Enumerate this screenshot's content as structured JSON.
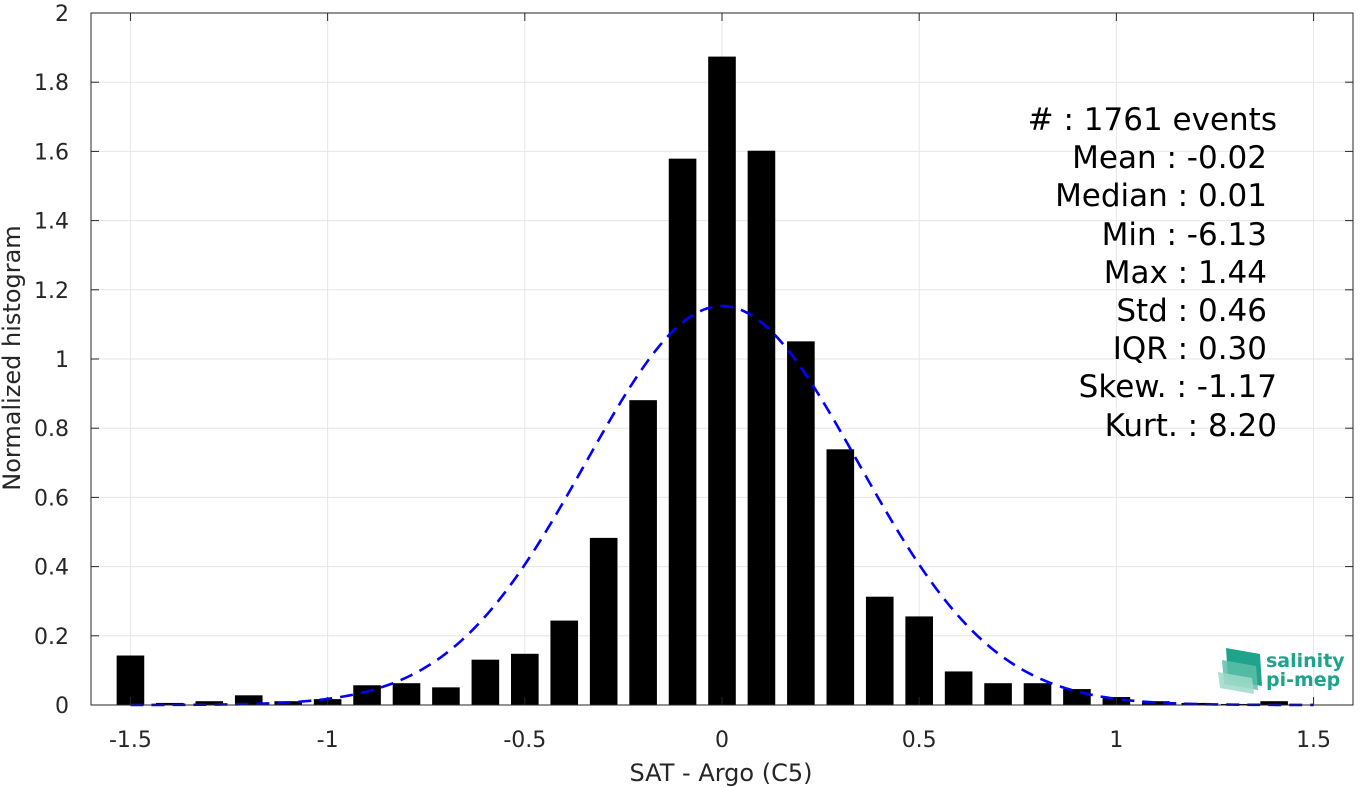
{
  "chart_data": {
    "type": "bar",
    "title": "",
    "xlabel": "SAT - Argo (C5)",
    "ylabel": "Normalized histogram",
    "xlim": [
      -1.6,
      1.6
    ],
    "ylim": [
      0,
      2
    ],
    "grid": true,
    "xticks": [
      "-1.5",
      "-1",
      "-0.5",
      "0",
      "0.5",
      "1",
      "1.5"
    ],
    "yticks": [
      "0",
      "0.2",
      "0.4",
      "0.6",
      "0.8",
      "1",
      "1.2",
      "1.4",
      "1.6",
      "1.8",
      "2"
    ],
    "bins": [
      -1.5,
      -1.4,
      -1.3,
      -1.2,
      -1.1,
      -1.0,
      -0.9,
      -0.8,
      -0.7,
      -0.6,
      -0.5,
      -0.4,
      -0.3,
      -0.2,
      -0.1,
      0.0,
      0.1,
      0.2,
      0.3,
      0.4,
      0.5,
      0.6,
      0.7,
      0.8,
      0.9,
      1.0,
      1.1,
      1.2,
      1.3,
      1.4
    ],
    "values": [
      0.143,
      0.006,
      0.011,
      0.028,
      0.011,
      0.017,
      0.057,
      0.063,
      0.051,
      0.131,
      0.148,
      0.244,
      0.483,
      0.881,
      1.579,
      1.874,
      1.602,
      1.051,
      0.739,
      0.313,
      0.256,
      0.097,
      0.063,
      0.063,
      0.046,
      0.023,
      0.011,
      0.006,
      0.003,
      0.011
    ],
    "fit_curve": {
      "type": "normal",
      "mean": 0.0,
      "std": 0.346,
      "peak": 1.153,
      "color": "#0000ff",
      "style": "dashed"
    },
    "bar_color": "#000000"
  },
  "stats": [
    "#  : 1761 events",
    "Mean : -0.02",
    "Median : 0.01",
    "Min : -6.13",
    "Max : 1.44",
    "Std : 0.46",
    "IQR : 0.30",
    "Skew. : -1.17",
    "Kurt. : 8.20"
  ],
  "logo": {
    "line1": "salinity",
    "line2": "pi-mep",
    "color": "#1fa38a"
  }
}
